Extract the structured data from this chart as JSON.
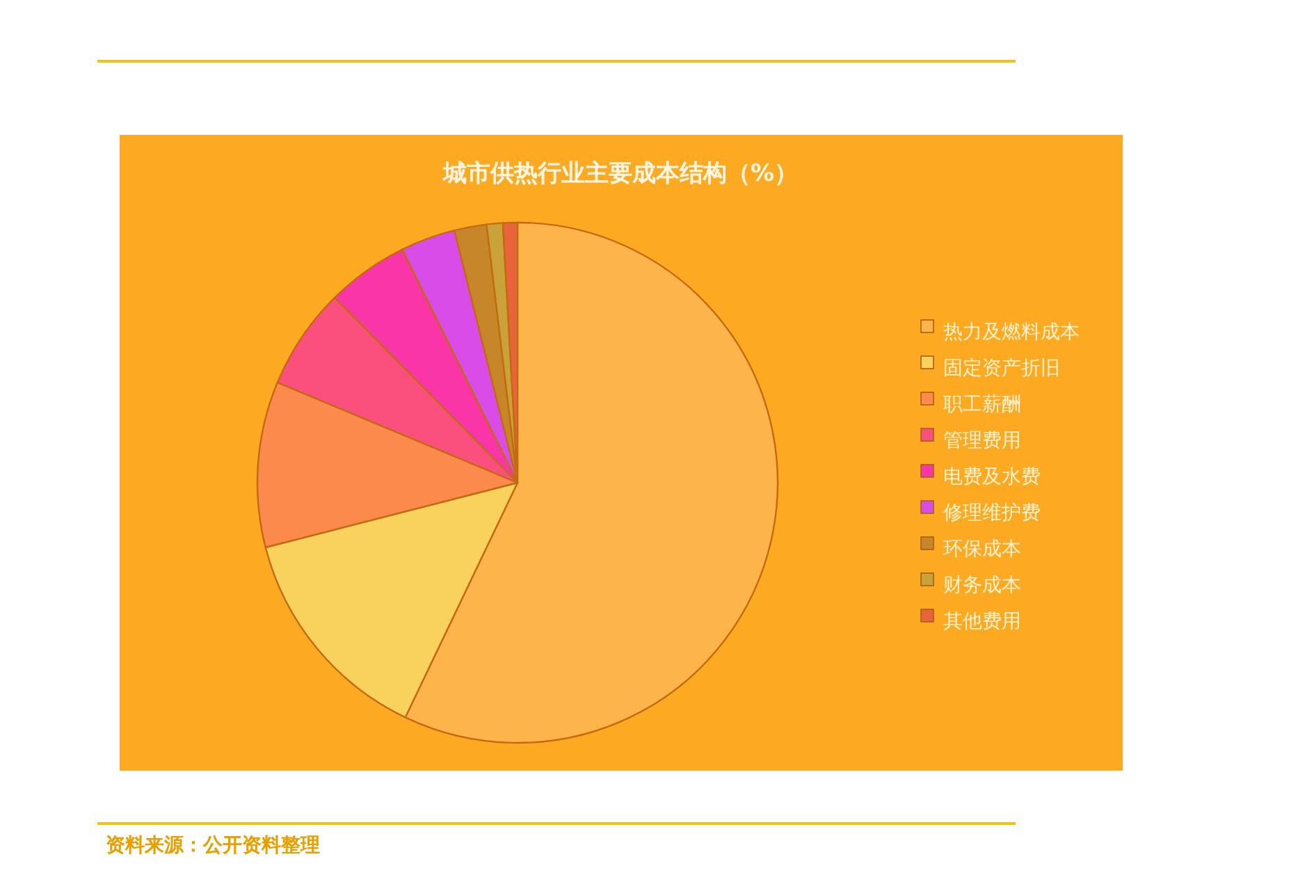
{
  "chart_data": {
    "type": "pie",
    "title": "城市供热行业主要成本结构（%）",
    "categories": [
      "热力及燃料成本",
      "固定资产折旧",
      "职工薪酬",
      "管理费用",
      "电费及水费",
      "修理维护费",
      "环保成本",
      "财务成本",
      "其他费用"
    ],
    "values": [
      57.1,
      13.9,
      10.3,
      6.3,
      5.1,
      3.4,
      2.0,
      1.0,
      0.9
    ],
    "colors": [
      "#fdb44a",
      "#f9d25e",
      "#fb8a4c",
      "#fb4f7e",
      "#f935a8",
      "#d94ce8",
      "#c7862a",
      "#c9a23a",
      "#e8643a"
    ],
    "legend": "right",
    "annotations": [
      "资料来源：公开资料整理"
    ]
  }
}
